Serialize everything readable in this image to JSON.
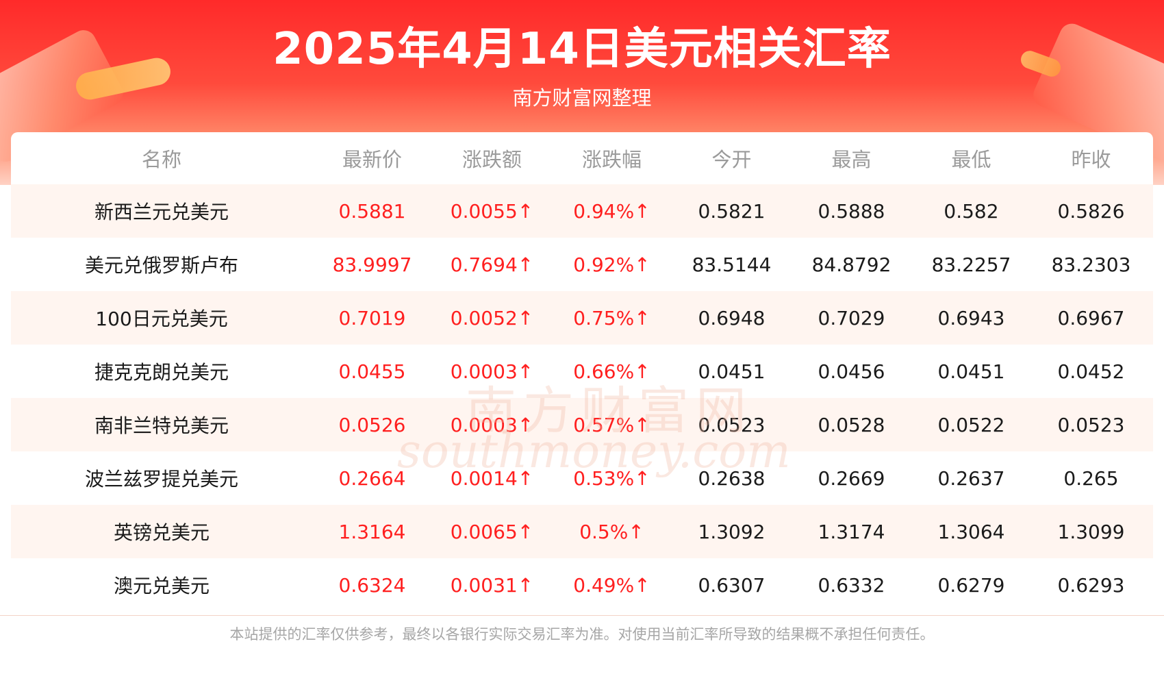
{
  "header": {
    "title": "2025年4月14日美元相关汇率",
    "subtitle": "南方财富网整理"
  },
  "table": {
    "columns": [
      "名称",
      "最新价",
      "涨跌额",
      "涨跌幅",
      "今开",
      "最高",
      "最低",
      "昨收"
    ],
    "rows": [
      [
        "新西兰元兑美元",
        "0.5881",
        "0.0055↑",
        "0.94%↑",
        "0.5821",
        "0.5888",
        "0.582",
        "0.5826"
      ],
      [
        "美元兑俄罗斯卢布",
        "83.9997",
        "0.7694↑",
        "0.92%↑",
        "83.5144",
        "84.8792",
        "83.2257",
        "83.2303"
      ],
      [
        "100日元兑美元",
        "0.7019",
        "0.0052↑",
        "0.75%↑",
        "0.6948",
        "0.7029",
        "0.6943",
        "0.6967"
      ],
      [
        "捷克克朗兑美元",
        "0.0455",
        "0.0003↑",
        "0.66%↑",
        "0.0451",
        "0.0456",
        "0.0451",
        "0.0452"
      ],
      [
        "南非兰特兑美元",
        "0.0526",
        "0.0003↑",
        "0.57%↑",
        "0.0523",
        "0.0528",
        "0.0522",
        "0.0523"
      ],
      [
        "波兰兹罗提兑美元",
        "0.2664",
        "0.0014↑",
        "0.53%↑",
        "0.2638",
        "0.2669",
        "0.2637",
        "0.265"
      ],
      [
        "英镑兑美元",
        "1.3164",
        "0.0065↑",
        "0.5%↑",
        "1.3092",
        "1.3174",
        "1.3064",
        "1.3099"
      ],
      [
        "澳元兑美元",
        "0.6324",
        "0.0031↑",
        "0.49%↑",
        "0.6307",
        "0.6332",
        "0.6279",
        "0.6293"
      ]
    ]
  },
  "watermark": {
    "cn": "南方财富网",
    "en": "southmoney.com"
  },
  "footer": {
    "disclaimer": "本站提供的汇率仅供参考，最终以各银行实际交易汇率为准。对使用当前汇率所导致的结果概不承担任何责任。"
  },
  "colors": {
    "header_red": "#ff2a2a",
    "up_red": "#ff1f1f",
    "row_stripe": "#fff5f0",
    "header_text": "#9a9a9a"
  }
}
